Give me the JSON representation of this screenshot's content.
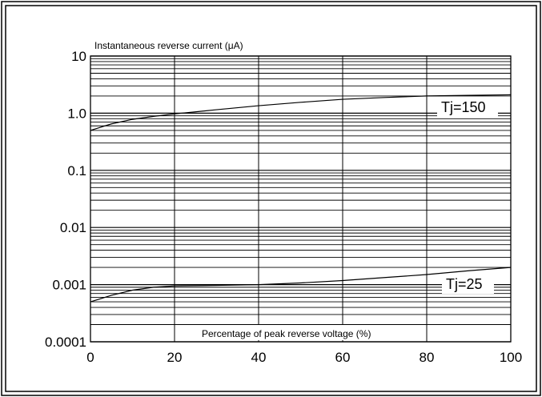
{
  "chart_data": {
    "type": "line",
    "title": "",
    "ylabel": "Instantaneous reverse current (μA)",
    "xlabel": "Percentage of peak reverse voltage (%)",
    "x_scale": "linear",
    "y_scale": "log",
    "xlim": [
      0,
      100
    ],
    "ylim": [
      0.0001,
      10
    ],
    "grid": true,
    "x_ticks": [
      0,
      20,
      40,
      60,
      80,
      100
    ],
    "x_tick_labels": [
      "0",
      "20",
      "40",
      "60",
      "80",
      "100"
    ],
    "y_ticks": [
      0.0001,
      0.001,
      0.01,
      0.1,
      1,
      10
    ],
    "y_tick_labels": [
      "0.0001",
      "0.001",
      "0.01",
      "0.1",
      "1.0",
      "10"
    ],
    "series": [
      {
        "name": "Tj=150",
        "x": [
          0,
          5,
          10,
          15,
          20,
          30,
          40,
          50,
          60,
          70,
          80,
          90,
          100
        ],
        "y": [
          0.5,
          0.65,
          0.78,
          0.88,
          0.97,
          1.15,
          1.35,
          1.55,
          1.75,
          1.88,
          2.0,
          2.05,
          2.1
        ]
      },
      {
        "name": "Tj=25",
        "x": [
          0,
          5,
          10,
          15,
          20,
          30,
          40,
          50,
          60,
          70,
          80,
          90,
          100
        ],
        "y": [
          0.0005,
          0.00065,
          0.0008,
          0.0009,
          0.00095,
          0.00097,
          0.001,
          0.00107,
          0.00118,
          0.00133,
          0.0015,
          0.00175,
          0.002
        ]
      }
    ],
    "annotations": [
      "Tj=150",
      "Tj=25"
    ]
  }
}
